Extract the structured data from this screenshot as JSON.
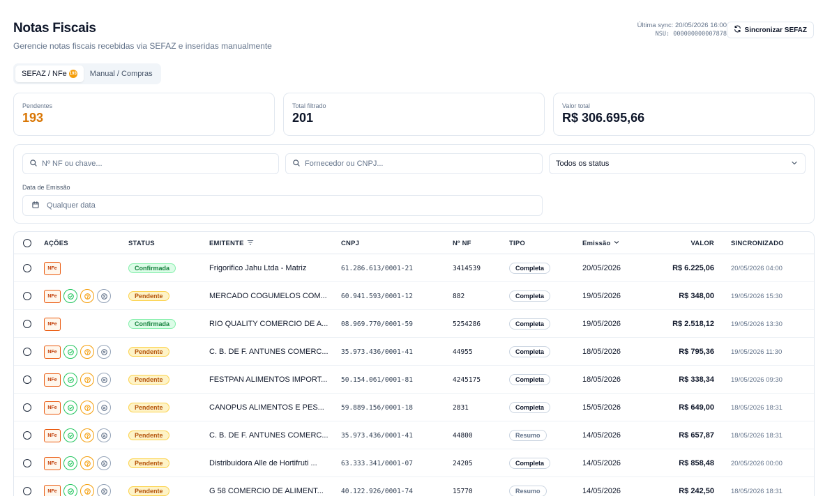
{
  "header": {
    "title": "Notas Fiscais",
    "subtitle": "Gerencie notas fiscais recebidas via SEFAZ e inseridas manualmente",
    "last_sync": "Última sync: 20/05/2026 16:00",
    "nsu": "NSU: 000000000007878",
    "sync_button": "Sincronizar SEFAZ"
  },
  "tabs": [
    {
      "label": "SEFAZ / NFe",
      "badge": "193",
      "active": true
    },
    {
      "label": "Manual / Compras",
      "active": false
    }
  ],
  "stats": [
    {
      "label": "Pendentes",
      "value": "193"
    },
    {
      "label": "Total filtrado",
      "value": "201"
    },
    {
      "label": "Valor total",
      "value": "R$ 306.695,66"
    }
  ],
  "filters": {
    "nf_placeholder": "Nº NF ou chave...",
    "supplier_placeholder": "Fornecedor ou CNPJ...",
    "status_value": "Todos os status",
    "date_label": "Data de Emissão",
    "date_value": "Qualquer data"
  },
  "table": {
    "columns": {
      "acoes": "AÇÕES",
      "status": "STATUS",
      "emitente": "EMITENTE",
      "cnpj": "CNPJ",
      "nf": "Nº NF",
      "tipo": "TIPO",
      "emissao": "Emissão",
      "valor": "VALOR",
      "sincronizado": "SINCRONIZADO"
    },
    "nfe_label": "NFe",
    "rows": [
      {
        "status": "Confirmada",
        "emitente": "Frigorifico Jahu Ltda - Matriz",
        "cnpj": "61.286.613/0001-21",
        "nf": "3414539",
        "tipo": "Completa",
        "emissao": "20/05/2026",
        "valor": "R$ 6.225,06",
        "sincronizado": "20/05/2026 04:00",
        "actions": false
      },
      {
        "status": "Pendente",
        "emitente": "MERCADO COGUMELOS COM...",
        "cnpj": "60.941.593/0001-12",
        "nf": "882",
        "tipo": "Completa",
        "emissao": "19/05/2026",
        "valor": "R$ 348,00",
        "sincronizado": "19/05/2026 15:30",
        "actions": true
      },
      {
        "status": "Confirmada",
        "emitente": "RIO QUALITY COMERCIO DE A...",
        "cnpj": "08.969.770/0001-59",
        "nf": "5254286",
        "tipo": "Completa",
        "emissao": "19/05/2026",
        "valor": "R$ 2.518,12",
        "sincronizado": "19/05/2026 13:30",
        "actions": false
      },
      {
        "status": "Pendente",
        "emitente": "C. B. DE F. ANTUNES COMERC...",
        "cnpj": "35.973.436/0001-41",
        "nf": "44955",
        "tipo": "Completa",
        "emissao": "18/05/2026",
        "valor": "R$ 795,36",
        "sincronizado": "19/05/2026 11:30",
        "actions": true
      },
      {
        "status": "Pendente",
        "emitente": "FESTPAN ALIMENTOS IMPORT...",
        "cnpj": "50.154.061/0001-81",
        "nf": "4245175",
        "tipo": "Completa",
        "emissao": "18/05/2026",
        "valor": "R$ 338,34",
        "sincronizado": "19/05/2026 09:30",
        "actions": true
      },
      {
        "status": "Pendente",
        "emitente": "CANOPUS ALIMENTOS E PES...",
        "cnpj": "59.889.156/0001-18",
        "nf": "2831",
        "tipo": "Completa",
        "emissao": "15/05/2026",
        "valor": "R$ 649,00",
        "sincronizado": "18/05/2026 18:31",
        "actions": true
      },
      {
        "status": "Pendente",
        "emitente": "C. B. DE F. ANTUNES COMERC...",
        "cnpj": "35.973.436/0001-41",
        "nf": "44800",
        "tipo": "Resumo",
        "emissao": "14/05/2026",
        "valor": "R$ 657,87",
        "sincronizado": "18/05/2026 18:31",
        "actions": true
      },
      {
        "status": "Pendente",
        "emitente": "Distribuidora Alle de Hortifruti ...",
        "cnpj": "63.333.341/0001-07",
        "nf": "24205",
        "tipo": "Completa",
        "emissao": "14/05/2026",
        "valor": "R$ 858,48",
        "sincronizado": "20/05/2026 00:00",
        "actions": true
      },
      {
        "status": "Pendente",
        "emitente": "G 58 COMERCIO DE ALIMENT...",
        "cnpj": "40.122.926/0001-74",
        "nf": "15770",
        "tipo": "Resumo",
        "emissao": "14/05/2026",
        "valor": "R$ 242,50",
        "sincronizado": "18/05/2026 18:31",
        "actions": true
      }
    ]
  },
  "colors": {
    "pending_orange": "#d97706",
    "confirmed_green": "#15803d",
    "pending_badge": "#b45309",
    "nfe_orange": "#ea580c"
  }
}
